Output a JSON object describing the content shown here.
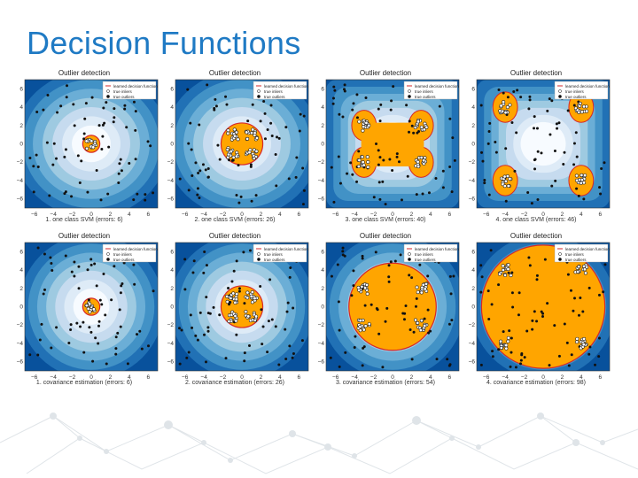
{
  "slide": {
    "title": "Decision Functions"
  },
  "colors": {
    "title": "#1f7ac4",
    "contour_dark": "#08519c",
    "contour_light": "#f7fbff",
    "inlier_region": "#ffa500",
    "boundary": "#d62728",
    "points": "#111111"
  },
  "chart_data": [
    {
      "type": "scatter",
      "title": "Outlier detection",
      "caption": "1. one class SVM (errors: 6)",
      "method": "one class SVM",
      "errors": 6,
      "clusters": [
        [
          0,
          0
        ]
      ],
      "radius": 0.9,
      "xlim": [
        -7,
        7
      ],
      "ylim": [
        -7,
        7
      ],
      "xticks": [
        "−6",
        "−4",
        "−2",
        "0",
        "2",
        "4",
        "6"
      ],
      "yticks": [
        "6",
        "4",
        "2",
        "0",
        "−2",
        "−4",
        "−6"
      ],
      "legend": [
        "learned decision function",
        "true inliers",
        "true outliers"
      ]
    },
    {
      "type": "scatter",
      "title": "Outlier detection",
      "caption": "2. one class SVM (errors: 26)",
      "method": "one class SVM",
      "errors": 26,
      "clusters": [
        [
          -1,
          1
        ],
        [
          1,
          1
        ],
        [
          -1,
          -1
        ],
        [
          1,
          -1
        ]
      ],
      "radius": 2.2,
      "xlim": [
        -7,
        7
      ],
      "ylim": [
        -7,
        7
      ],
      "xticks": [
        "−6",
        "−4",
        "−2",
        "0",
        "2",
        "4",
        "6"
      ],
      "yticks": [
        "6",
        "4",
        "2",
        "0",
        "−2",
        "−4",
        "−6"
      ],
      "legend": [
        "learned decision function",
        "true inliers",
        "true outliers"
      ]
    },
    {
      "type": "scatter",
      "title": "Outlier detection",
      "caption": "3. one class SVM (errors: 40)",
      "method": "one class SVM",
      "errors": 40,
      "clusters": [
        [
          -3,
          2
        ],
        [
          3,
          2
        ],
        [
          -3,
          -2
        ],
        [
          3,
          -2
        ]
      ],
      "radius": 0,
      "xlim": [
        -7,
        7
      ],
      "ylim": [
        -7,
        7
      ],
      "xticks": [
        "−6",
        "−4",
        "−2",
        "0",
        "2",
        "4",
        "6"
      ],
      "yticks": [
        "6",
        "4",
        "2",
        "0",
        "−2",
        "−4",
        "−6"
      ],
      "legend": [
        "learned decision function",
        "true inliers",
        "true outliers"
      ]
    },
    {
      "type": "scatter",
      "title": "Outlier detection",
      "caption": "4. one class SVM (errors: 46)",
      "method": "one class SVM",
      "errors": 46,
      "clusters": [
        [
          -4,
          4
        ],
        [
          4,
          4
        ],
        [
          -4,
          -4
        ],
        [
          4,
          -4
        ]
      ],
      "radius": 0,
      "xlim": [
        -7,
        7
      ],
      "ylim": [
        -7,
        7
      ],
      "xticks": [
        "−6",
        "−4",
        "−2",
        "0",
        "2",
        "4",
        "6"
      ],
      "yticks": [
        "6",
        "4",
        "2",
        "0",
        "−2",
        "−4",
        "−6"
      ],
      "legend": [
        "learned decision function",
        "true inliers",
        "true outliers"
      ]
    },
    {
      "type": "scatter",
      "title": "Outlier detection",
      "caption": "1. covariance estimation (errors: 6)",
      "method": "covariance estimation",
      "errors": 6,
      "clusters": [
        [
          0,
          0
        ]
      ],
      "radius": 0.9,
      "xlim": [
        -7,
        7
      ],
      "ylim": [
        -7,
        7
      ],
      "xticks": [
        "−6",
        "−4",
        "−2",
        "0",
        "2",
        "4",
        "6"
      ],
      "yticks": [
        "6",
        "4",
        "2",
        "0",
        "−2",
        "−4",
        "−6"
      ],
      "legend": [
        "learned decision function",
        "true inliers",
        "true outliers"
      ]
    },
    {
      "type": "scatter",
      "title": "Outlier detection",
      "caption": "2. covariance estimation (errors: 26)",
      "method": "covariance estimation",
      "errors": 26,
      "clusters": [
        [
          -1,
          1
        ],
        [
          1,
          1
        ],
        [
          -1,
          -1
        ],
        [
          1,
          -1
        ]
      ],
      "radius": 2.2,
      "xlim": [
        -7,
        7
      ],
      "ylim": [
        -7,
        7
      ],
      "xticks": [
        "−6",
        "−4",
        "−2",
        "0",
        "2",
        "4",
        "6"
      ],
      "yticks": [
        "6",
        "4",
        "2",
        "0",
        "−2",
        "−4",
        "−6"
      ],
      "legend": [
        "learned decision function",
        "true inliers",
        "true outliers"
      ]
    },
    {
      "type": "scatter",
      "title": "Outlier detection",
      "caption": "3. covariance estimation (errors: 54)",
      "method": "covariance estimation",
      "errors": 54,
      "clusters": [
        [
          -3,
          2
        ],
        [
          3,
          2
        ],
        [
          -3,
          -2
        ],
        [
          3,
          -2
        ]
      ],
      "radius": 4.6,
      "xlim": [
        -7,
        7
      ],
      "ylim": [
        -7,
        7
      ],
      "xticks": [
        "−6",
        "−4",
        "−2",
        "0",
        "2",
        "4",
        "6"
      ],
      "yticks": [
        "6",
        "4",
        "2",
        "0",
        "−2",
        "−4",
        "−6"
      ],
      "legend": [
        "learned decision function",
        "true inliers",
        "true outliers"
      ]
    },
    {
      "type": "scatter",
      "title": "Outlier detection",
      "caption": "4. covariance estimation (errors: 98)",
      "method": "covariance estimation",
      "errors": 98,
      "clusters": [
        [
          -4,
          4
        ],
        [
          4,
          4
        ],
        [
          -4,
          -4
        ],
        [
          4,
          -4
        ]
      ],
      "radius": 6.5,
      "xlim": [
        -7,
        7
      ],
      "ylim": [
        -7,
        7
      ],
      "xticks": [
        "−6",
        "−4",
        "−2",
        "0",
        "2",
        "4",
        "6"
      ],
      "yticks": [
        "6",
        "4",
        "2",
        "0",
        "−2",
        "−4",
        "−6"
      ],
      "legend": [
        "learned decision function",
        "true inliers",
        "true outliers"
      ]
    }
  ]
}
